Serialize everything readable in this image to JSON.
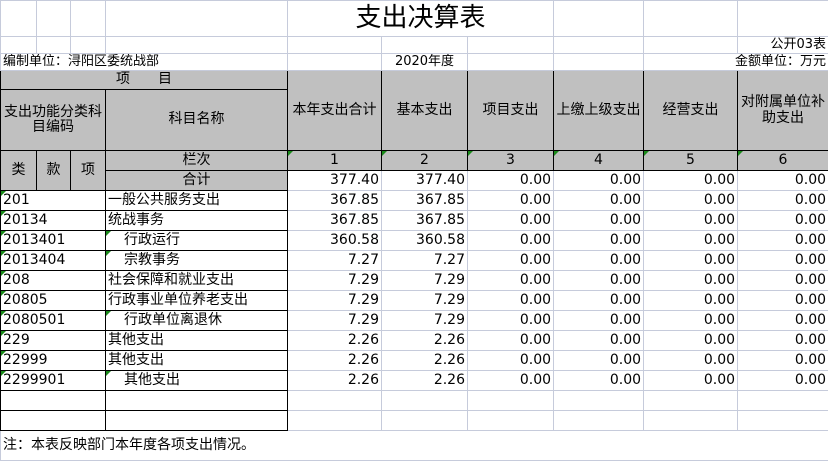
{
  "title": "支出决算表",
  "form_no": "公开03表",
  "org_label": "编制单位：浔阳区委统战部",
  "year": "2020年度",
  "unit": "金额单位：万元",
  "header": {
    "item": "项　　目",
    "code": "支出功能分类科目编码",
    "name": "科目名称",
    "lei": "类",
    "kuan": "款",
    "xiang": "项",
    "lanci": "栏次",
    "total_label": "合计",
    "columns": [
      "本年支出合计",
      "基本支出",
      "项目支出",
      "上缴上级支出",
      "经营支出",
      "对附属单位补助支出"
    ],
    "col_nums": [
      "1",
      "2",
      "3",
      "4",
      "5",
      "6"
    ]
  },
  "total": [
    "377.40",
    "377.40",
    "0.00",
    "0.00",
    "0.00",
    "0.00"
  ],
  "rows": [
    {
      "code": "201",
      "name": "一般公共服务支出",
      "indent": false,
      "values": [
        "367.85",
        "367.85",
        "0.00",
        "0.00",
        "0.00",
        "0.00"
      ]
    },
    {
      "code": "20134",
      "name": "统战事务",
      "indent": false,
      "values": [
        "367.85",
        "367.85",
        "0.00",
        "0.00",
        "0.00",
        "0.00"
      ]
    },
    {
      "code": "2013401",
      "name": "行政运行",
      "indent": true,
      "values": [
        "360.58",
        "360.58",
        "0.00",
        "0.00",
        "0.00",
        "0.00"
      ]
    },
    {
      "code": "2013404",
      "name": "宗教事务",
      "indent": true,
      "values": [
        "7.27",
        "7.27",
        "0.00",
        "0.00",
        "0.00",
        "0.00"
      ]
    },
    {
      "code": "208",
      "name": "社会保障和就业支出",
      "indent": false,
      "values": [
        "7.29",
        "7.29",
        "0.00",
        "0.00",
        "0.00",
        "0.00"
      ]
    },
    {
      "code": "20805",
      "name": "行政事业单位养老支出",
      "indent": false,
      "values": [
        "7.29",
        "7.29",
        "0.00",
        "0.00",
        "0.00",
        "0.00"
      ]
    },
    {
      "code": "2080501",
      "name": "行政单位离退休",
      "indent": true,
      "values": [
        "7.29",
        "7.29",
        "0.00",
        "0.00",
        "0.00",
        "0.00"
      ]
    },
    {
      "code": "229",
      "name": "其他支出",
      "indent": false,
      "values": [
        "2.26",
        "2.26",
        "0.00",
        "0.00",
        "0.00",
        "0.00"
      ]
    },
    {
      "code": "22999",
      "name": "其他支出",
      "indent": false,
      "values": [
        "2.26",
        "2.26",
        "0.00",
        "0.00",
        "0.00",
        "0.00"
      ]
    },
    {
      "code": "2299901",
      "name": "其他支出",
      "indent": true,
      "values": [
        "2.26",
        "2.26",
        "0.00",
        "0.00",
        "0.00",
        "0.00"
      ]
    }
  ],
  "note": "注：本表反映部门本年度各项支出情况。"
}
